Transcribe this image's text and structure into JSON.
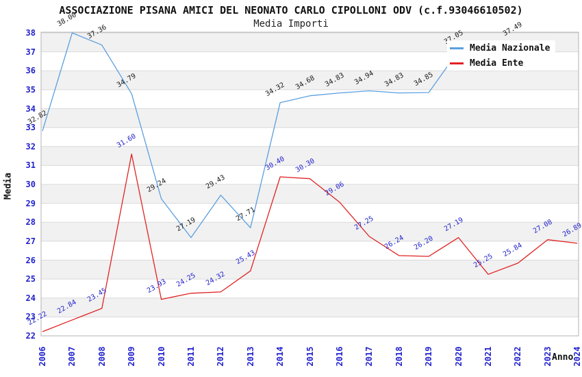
{
  "title": "ASSOCIAZIONE PISANA AMICI DEL NEONATO CARLO CIPOLLONI ODV (c.f.93046610502)",
  "subtitle": "Media Importi",
  "axes": {
    "x_label": "Anno",
    "y_label": "Media",
    "y_ticks": [
      22,
      23,
      24,
      25,
      26,
      27,
      28,
      29,
      30,
      31,
      32,
      33,
      34,
      35,
      36,
      37,
      38
    ],
    "x_ticks": [
      2006,
      2007,
      2008,
      2009,
      2010,
      2011,
      2012,
      2013,
      2014,
      2015,
      2016,
      2017,
      2018,
      2019,
      2020,
      2021,
      2022,
      2023,
      2024
    ]
  },
  "legend": {
    "nazionale_label": "Media Nazionale",
    "ente_label": "Media Ente"
  },
  "colors": {
    "line_nazionale": "#5b9fdf",
    "line_ente": "#e02222",
    "label_nazionale": "#1a1a1a",
    "label_ente": "#2222cc",
    "tick_text": "#2222cc",
    "band_gray": "#f1f1f1",
    "grid_line": "#dadada",
    "plot_border": "#b3b3b3"
  },
  "chart_data": {
    "type": "line",
    "title": "ASSOCIAZIONE PISANA AMICI DEL NEONATO CARLO CIPOLLONI ODV (c.f.93046610502)",
    "subtitle": "Media Importi",
    "xlabel": "Anno",
    "ylabel": "Media",
    "ylim": [
      22,
      38
    ],
    "grid": "horizontal gridlines with alternating gray/white one-unit bands",
    "legend_position": "top-right",
    "x": [
      2006,
      2007,
      2008,
      2009,
      2010,
      2011,
      2012,
      2013,
      2014,
      2015,
      2016,
      2017,
      2018,
      2019,
      2020,
      2021,
      2022,
      2023,
      2024
    ],
    "series": [
      {
        "name": "Media Nazionale",
        "color": "#5b9fdf",
        "values": [
          32.82,
          38.0,
          37.36,
          34.79,
          29.24,
          27.19,
          29.43,
          27.71,
          34.32,
          34.68,
          34.83,
          34.94,
          34.83,
          34.85,
          37.05,
          null,
          37.49,
          null,
          null
        ],
        "note_nulls": "2021 point hidden behind legend; no data shown for 2023-2024"
      },
      {
        "name": "Media Ente",
        "color": "#e02222",
        "values": [
          22.22,
          22.84,
          23.45,
          31.6,
          23.93,
          24.25,
          24.32,
          25.43,
          30.4,
          30.3,
          29.06,
          27.25,
          26.24,
          26.2,
          27.19,
          25.25,
          25.84,
          27.08,
          26.89
        ]
      }
    ]
  }
}
